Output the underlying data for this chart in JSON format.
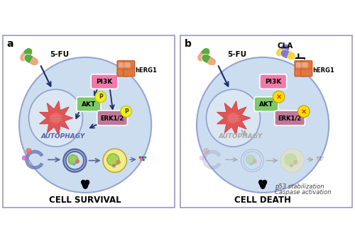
{
  "fig_width": 5.0,
  "fig_height": 3.43,
  "dpi": 100,
  "bg_color": "#ffffff",
  "border_color": "#9999bb",
  "cell_color": "#c5d8ee",
  "nucleus_color": "#dce8f2",
  "panel_a_label": "a",
  "panel_b_label": "b",
  "label_5fu": "5-FU",
  "label_herg1": "hERG1",
  "label_pi3k": "PI3K",
  "label_akt": "AKT",
  "label_erk": "ERK1/2",
  "label_autophagy_a": "AUTOPHAGY",
  "label_autophagy_b": "AUTOPHAGY",
  "label_cell_survival": "CELL SURVIVAL",
  "label_cell_death": "CELL DEATH",
  "label_cla": "CLA",
  "label_p53": "p53 stabilization",
  "label_caspase": "Caspase activation",
  "pi3k_color": "#f07aaa",
  "akt_color": "#7dc86a",
  "erk_color": "#c07898",
  "p_color": "#f0f020",
  "herg1_color": "#e07840",
  "herg1_color2": "#d06030",
  "arrow_color": "#1a2a6a",
  "autophagy_color_a": "#5565a8",
  "autophagy_color_b": "#aaaaaa",
  "drug_green": "#5aaa40",
  "drug_peach": "#f0a880",
  "drug_yellow": "#f0d840",
  "drug_purple": "#8878cc",
  "x_color": "#ffdd00",
  "x_cross": "#dd0000"
}
